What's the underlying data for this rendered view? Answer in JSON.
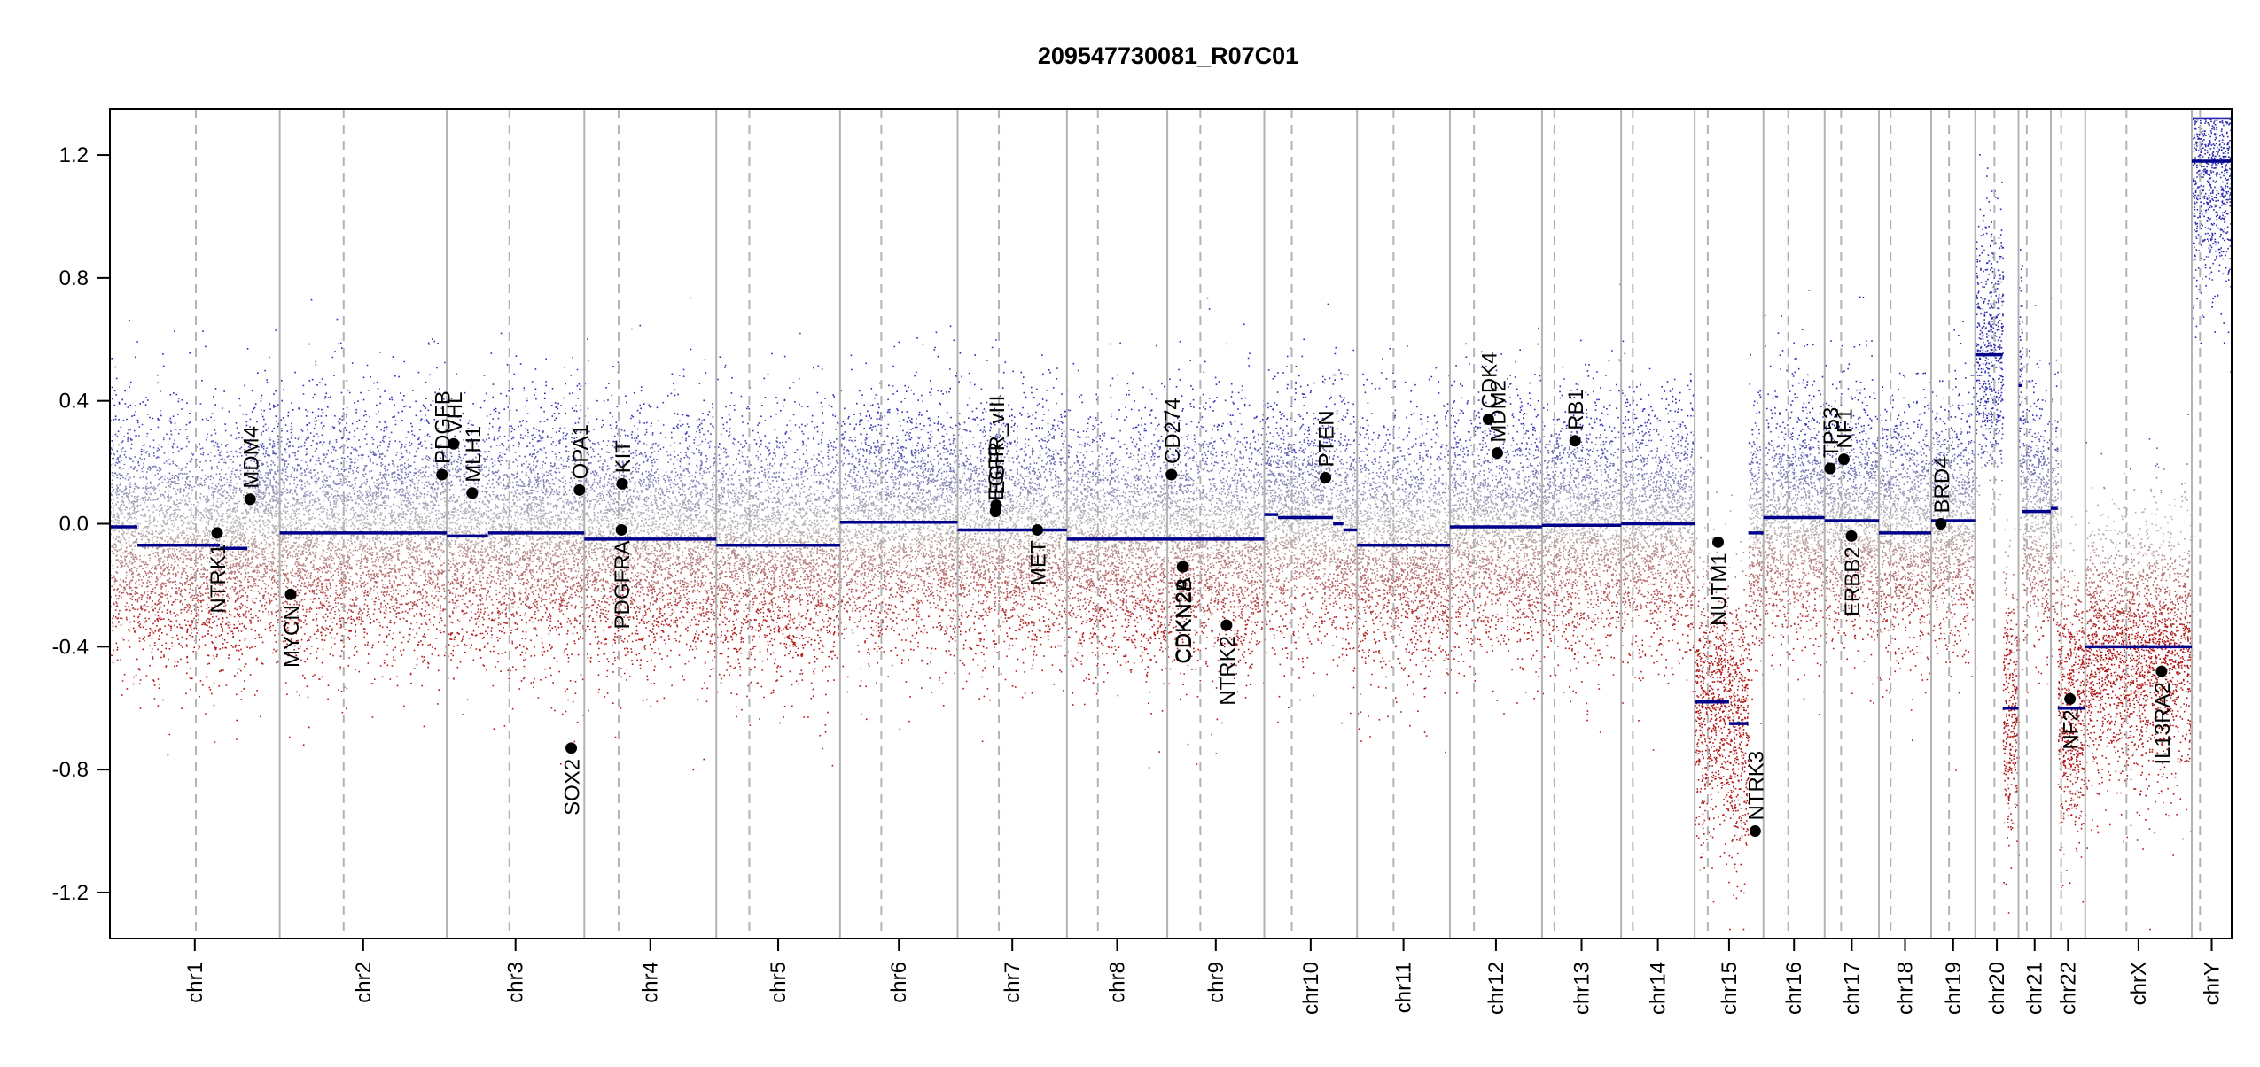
{
  "chart_data": {
    "type": "scatter",
    "title": "209547730081_R07C01",
    "xlabel": "",
    "ylabel": "",
    "ylim": [
      -1.35,
      1.35
    ],
    "y_ticks": [
      1.2,
      0.8,
      0.4,
      0.0,
      -0.4,
      -0.8,
      -1.2
    ],
    "y_tick_labels": [
      "1.2",
      "0.8",
      "0.4",
      "0.0",
      "-0.4",
      "-0.8",
      "-1.2"
    ],
    "grid": false,
    "colors": {
      "gain": "#2b2bb0",
      "neutral": "#b8b8b8",
      "loss": "#b01515",
      "segment": "#00008b",
      "boundary": "#b3b3b3",
      "gene_point": "#000000"
    },
    "chromosomes": [
      {
        "name": "chr1",
        "start": 0,
        "end": 247,
        "centromere": 125,
        "segments": [
          {
            "start": 0,
            "end": 40,
            "value": -0.01
          },
          {
            "start": 40,
            "end": 160,
            "value": -0.07
          },
          {
            "start": 160,
            "end": 200,
            "value": -0.08
          }
        ]
      },
      {
        "name": "chr2",
        "start": 247,
        "end": 490,
        "centromere": 93,
        "segments": [
          {
            "start": 0,
            "end": 243,
            "value": -0.03
          }
        ]
      },
      {
        "name": "chr3",
        "start": 490,
        "end": 690,
        "centromere": 91,
        "segments": [
          {
            "start": 0,
            "end": 60,
            "value": -0.04
          },
          {
            "start": 60,
            "end": 200,
            "value": -0.03
          }
        ]
      },
      {
        "name": "chr4",
        "start": 690,
        "end": 882,
        "centromere": 50,
        "segments": [
          {
            "start": 0,
            "end": 192,
            "value": -0.05
          }
        ]
      },
      {
        "name": "chr5",
        "start": 882,
        "end": 1062,
        "centromere": 48,
        "segments": [
          {
            "start": 0,
            "end": 180,
            "value": -0.07
          }
        ]
      },
      {
        "name": "chr6",
        "start": 1062,
        "end": 1233,
        "centromere": 60,
        "segments": [
          {
            "start": 0,
            "end": 171,
            "value": 0.005
          }
        ]
      },
      {
        "name": "chr7",
        "start": 1233,
        "end": 1392,
        "centromere": 60,
        "segments": [
          {
            "start": 0,
            "end": 159,
            "value": -0.02
          }
        ]
      },
      {
        "name": "chr8",
        "start": 1392,
        "end": 1538,
        "centromere": 45,
        "segments": [
          {
            "start": 0,
            "end": 146,
            "value": -0.05
          }
        ]
      },
      {
        "name": "chr9",
        "start": 1538,
        "end": 1679,
        "centromere": 48,
        "segments": [
          {
            "start": 0,
            "end": 141,
            "value": -0.05
          }
        ]
      },
      {
        "name": "chr10",
        "start": 1679,
        "end": 1814,
        "centromere": 40,
        "segments": [
          {
            "start": 0,
            "end": 20,
            "value": 0.03
          },
          {
            "start": 20,
            "end": 100,
            "value": 0.02
          },
          {
            "start": 100,
            "end": 115,
            "value": 0.0
          },
          {
            "start": 115,
            "end": 135,
            "value": -0.02
          }
        ]
      },
      {
        "name": "chr11",
        "start": 1814,
        "end": 1949,
        "centromere": 53,
        "segments": [
          {
            "start": 0,
            "end": 135,
            "value": -0.07
          }
        ]
      },
      {
        "name": "chr12",
        "start": 1949,
        "end": 2083,
        "centromere": 35,
        "segments": [
          {
            "start": 0,
            "end": 134,
            "value": -0.01
          }
        ]
      },
      {
        "name": "chr13",
        "start": 2083,
        "end": 2198,
        "centromere": 18,
        "segments": [
          {
            "start": 0,
            "end": 115,
            "value": -0.005
          }
        ]
      },
      {
        "name": "chr14",
        "start": 2198,
        "end": 2305,
        "centromere": 17,
        "segments": [
          {
            "start": 0,
            "end": 107,
            "value": 0.0
          }
        ]
      },
      {
        "name": "chr15",
        "start": 2305,
        "end": 2405,
        "centromere": 19,
        "segments": [
          {
            "start": 0,
            "end": 50,
            "value": -0.58
          },
          {
            "start": 50,
            "end": 78,
            "value": -0.65
          },
          {
            "start": 78,
            "end": 100,
            "value": -0.03
          }
        ]
      },
      {
        "name": "chr16",
        "start": 2405,
        "end": 2494,
        "centromere": 36,
        "segments": [
          {
            "start": 0,
            "end": 89,
            "value": 0.02
          }
        ]
      },
      {
        "name": "chr17",
        "start": 2494,
        "end": 2573,
        "centromere": 24,
        "segments": [
          {
            "start": 0,
            "end": 79,
            "value": 0.01
          }
        ]
      },
      {
        "name": "chr18",
        "start": 2573,
        "end": 2649,
        "centromere": 17,
        "segments": [
          {
            "start": 0,
            "end": 76,
            "value": -0.03
          }
        ]
      },
      {
        "name": "chr19",
        "start": 2649,
        "end": 2713,
        "centromere": 26,
        "segments": [
          {
            "start": 0,
            "end": 64,
            "value": 0.01
          }
        ]
      },
      {
        "name": "chr20",
        "start": 2713,
        "end": 2776,
        "centromere": 28,
        "segments": [
          {
            "start": 0,
            "end": 40,
            "value": 0.55
          },
          {
            "start": 40,
            "end": 63,
            "value": -0.6
          }
        ]
      },
      {
        "name": "chr21",
        "start": 2776,
        "end": 2823,
        "centromere": 12,
        "segments": [
          {
            "start": 0,
            "end": 5,
            "value": 0.45
          },
          {
            "start": 5,
            "end": 47,
            "value": 0.04
          }
        ]
      },
      {
        "name": "chr22",
        "start": 2823,
        "end": 2873,
        "centromere": 15,
        "segments": [
          {
            "start": 0,
            "end": 10,
            "value": 0.05
          },
          {
            "start": 10,
            "end": 50,
            "value": -0.6
          }
        ]
      },
      {
        "name": "chrX",
        "start": 2873,
        "end": 3028,
        "centromere": 60,
        "segments": [
          {
            "start": 0,
            "end": 155,
            "value": -0.4
          }
        ]
      },
      {
        "name": "chrY",
        "start": 3028,
        "end": 3086,
        "centromere": 12,
        "segments": [
          {
            "start": 0,
            "end": 58,
            "value": 1.18
          }
        ]
      }
    ],
    "genes": [
      {
        "name": "NTRK1",
        "pos": 156,
        "value": -0.03,
        "label_side": "below"
      },
      {
        "name": "MDM4",
        "pos": 204,
        "value": 0.08,
        "label_side": "above"
      },
      {
        "name": "MYCN",
        "pos": 263,
        "value": -0.23,
        "label_side": "below"
      },
      {
        "name": "PDGFB",
        "pos": 483,
        "value": 0.16,
        "label_side": "above"
      },
      {
        "name": "VHL",
        "pos": 500,
        "value": 0.26,
        "label_side": "above"
      },
      {
        "name": "MLH1",
        "pos": 527,
        "value": 0.1,
        "label_side": "above"
      },
      {
        "name": "SOX2",
        "pos": 671,
        "value": -0.73,
        "label_side": "below"
      },
      {
        "name": "OPA1",
        "pos": 683,
        "value": 0.11,
        "label_side": "above"
      },
      {
        "name": "KIT",
        "pos": 745,
        "value": 0.13,
        "label_side": "above"
      },
      {
        "name": "PDGFRA",
        "pos": 744,
        "value": -0.02,
        "label_side": "below"
      },
      {
        "name": "EGFR",
        "pos": 1288,
        "value": 0.04,
        "label_side": "above"
      },
      {
        "name": "EGFR_vIII",
        "pos": 1289,
        "value": 0.06,
        "label_side": "above"
      },
      {
        "name": "MET",
        "pos": 1349,
        "value": -0.02,
        "label_side": "below"
      },
      {
        "name": "CD274",
        "pos": 1544,
        "value": 0.16,
        "label_side": "above"
      },
      {
        "name": "CDKN2A",
        "pos": 1560,
        "value": -0.14,
        "label_side": "below"
      },
      {
        "name": "CDKN2B",
        "pos": 1561,
        "value": -0.14,
        "label_side": "below"
      },
      {
        "name": "NTRK2",
        "pos": 1624,
        "value": -0.33,
        "label_side": "below"
      },
      {
        "name": "PTEN",
        "pos": 1768,
        "value": 0.15,
        "label_side": "above"
      },
      {
        "name": "CDK4",
        "pos": 2005,
        "value": 0.34,
        "label_side": "above"
      },
      {
        "name": "MDM2",
        "pos": 2018,
        "value": 0.23,
        "label_side": "above"
      },
      {
        "name": "RB1",
        "pos": 2131,
        "value": 0.27,
        "label_side": "above"
      },
      {
        "name": "NUTM1",
        "pos": 2339,
        "value": -0.06,
        "label_side": "below"
      },
      {
        "name": "NTRK3",
        "pos": 2393,
        "value": -1.0,
        "label_side": "above"
      },
      {
        "name": "TP53",
        "pos": 2502,
        "value": 0.18,
        "label_side": "above"
      },
      {
        "name": "NF1",
        "pos": 2522,
        "value": 0.21,
        "label_side": "above"
      },
      {
        "name": "ERBB2",
        "pos": 2533,
        "value": -0.04,
        "label_side": "below"
      },
      {
        "name": "BRD4",
        "pos": 2663,
        "value": 0.0,
        "label_side": "above"
      },
      {
        "name": "NF2",
        "pos": 2851,
        "value": -0.57,
        "label_side": "below"
      },
      {
        "name": "IL13RA2",
        "pos": 2984,
        "value": -0.48,
        "label_side": "below"
      }
    ]
  }
}
